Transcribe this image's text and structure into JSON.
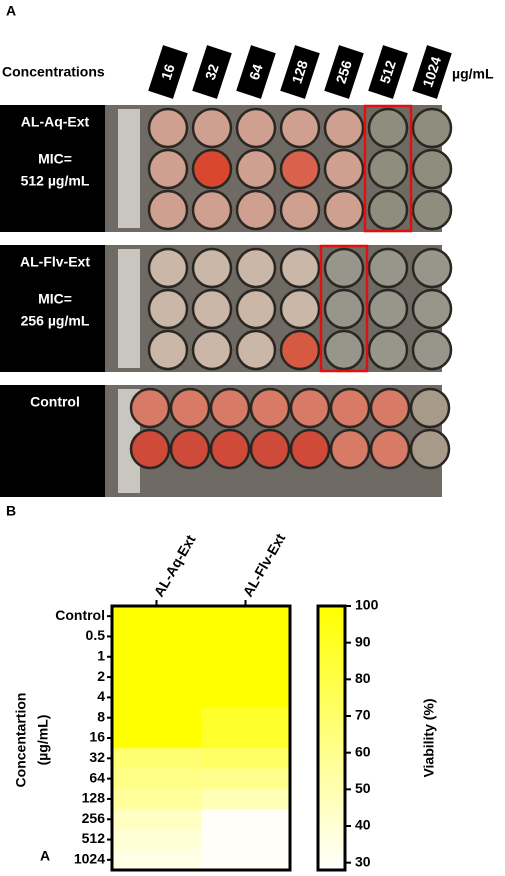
{
  "panel_a": {
    "label": "A",
    "concentrations_label": "Concentrations",
    "concentrations": [
      "16",
      "32",
      "64",
      "128",
      "256",
      "512",
      "1024"
    ],
    "unit": "µg/mL",
    "plates": [
      {
        "name": "AL-Aq-Ext",
        "mic_label": "MIC=",
        "mic": "512 µg/mL"
      },
      {
        "name": "AL-Flv-Ext",
        "mic_label": "MIC=",
        "mic": "256 µg/mL"
      },
      {
        "name": "Control"
      }
    ]
  },
  "chart_data": {
    "type": "heatmap",
    "panel_label": "B",
    "x": [
      "AL-Aq-Ext",
      "AL-Flv-Ext"
    ],
    "y": [
      "Control",
      "0.5",
      "1",
      "2",
      "4",
      "8",
      "16",
      "32",
      "64",
      "128",
      "256",
      "512",
      "1024"
    ],
    "y_label": [
      "Concentartion",
      "(µg/mL)"
    ],
    "values": [
      [
        100,
        100
      ],
      [
        100,
        100
      ],
      [
        100,
        100
      ],
      [
        100,
        100
      ],
      [
        100,
        100
      ],
      [
        100,
        88
      ],
      [
        100,
        88
      ],
      [
        68,
        72
      ],
      [
        62,
        60
      ],
      [
        56,
        48
      ],
      [
        45,
        30
      ],
      [
        40,
        30
      ],
      [
        35,
        30
      ]
    ],
    "colorbar": {
      "label": "Viability (%)",
      "lim": [
        28,
        100
      ],
      "ticks": [
        30,
        40,
        50,
        60,
        70,
        80,
        90,
        100
      ],
      "colors": [
        "#ffffff",
        "#ffff00"
      ]
    },
    "annotations": [
      "A"
    ]
  }
}
